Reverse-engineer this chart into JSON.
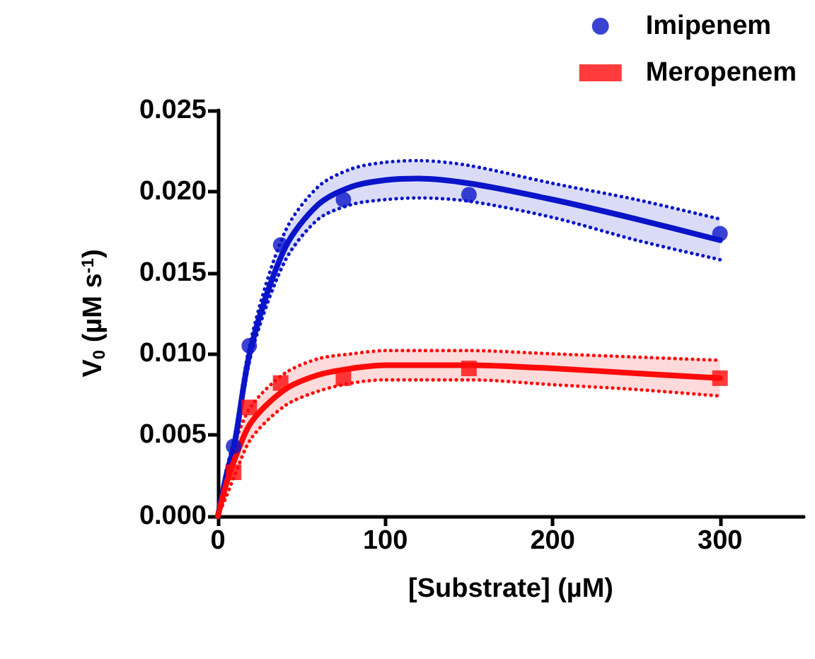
{
  "chart_data": {
    "type": "scatter",
    "xlabel": "[Substrate] (µM)",
    "ylabel": "V$_{0}$ (µM s$^{-1}$)",
    "xlim": [
      0,
      350
    ],
    "xticks": [
      0,
      100,
      200,
      300
    ],
    "ylim": [
      0,
      0.025
    ],
    "yticks": [
      {
        "value": 0,
        "label": "0.000"
      },
      {
        "value": 0.005,
        "label": "0.005"
      },
      {
        "value": 0.01,
        "label": "0.010"
      },
      {
        "value": 0.015,
        "label": "0.015"
      },
      {
        "value": 0.02,
        "label": "0.020"
      },
      {
        "value": 0.025,
        "label": "0.025"
      }
    ],
    "grid": false,
    "legend": "top right",
    "series": [
      {
        "name": "Imipenem",
        "color": "#0a14c8",
        "marker": "circle",
        "x": [
          9.375,
          18.75,
          37.5,
          75,
          150,
          300
        ],
        "values": [
          0.0043,
          0.0105,
          0.0167,
          0.0195,
          0.0198,
          0.0174
        ]
      },
      {
        "name": "Meropenem",
        "color": "#ff0a0a",
        "marker": "square",
        "x": [
          9.375,
          18.75,
          37.5,
          75,
          150,
          300
        ],
        "values": [
          0.0027,
          0.0067,
          0.0082,
          0.0085,
          0.0091,
          0.0085
        ]
      },
      {
        "type": "line",
        "color": "#0a14c8",
        "marker": "none",
        "line_style": "solid",
        "x": [
          0,
          5,
          10,
          20,
          40,
          60,
          80,
          100,
          120,
          150,
          200,
          250,
          300
        ],
        "values": [
          0,
          0.0025,
          0.0045,
          0.0105,
          0.0165,
          0.0192,
          0.0203,
          0.0207,
          0.0208,
          0.0205,
          0.0195,
          0.0183,
          0.017
        ],
        "lower": [
          0,
          0.0022,
          0.0041,
          0.01,
          0.0157,
          0.0183,
          0.0192,
          0.0195,
          0.0196,
          0.0194,
          0.0184,
          0.017,
          0.0158
        ],
        "upper": [
          0,
          0.0028,
          0.0049,
          0.011,
          0.0175,
          0.0203,
          0.0214,
          0.0218,
          0.0219,
          0.0216,
          0.0205,
          0.0195,
          0.0183
        ]
      },
      {
        "type": "line",
        "color": "#0a14c8",
        "marker": "none",
        "line_style": "dotted",
        "x": [
          0,
          5,
          10,
          20,
          40,
          60,
          80,
          100,
          120,
          150,
          200,
          250,
          300
        ],
        "values": [
          0,
          0.0022,
          0.0041,
          0.01,
          0.0157,
          0.0183,
          0.0192,
          0.0195,
          0.0196,
          0.0194,
          0.0184,
          0.017,
          0.0158
        ]
      },
      {
        "type": "line",
        "color": "#0a14c8",
        "marker": "none",
        "line_style": "dotted",
        "x": [
          0,
          5,
          10,
          20,
          40,
          60,
          80,
          100,
          120,
          150,
          200,
          250,
          300
        ],
        "values": [
          0,
          0.0028,
          0.0049,
          0.011,
          0.0175,
          0.0203,
          0.0214,
          0.0218,
          0.0219,
          0.0216,
          0.0205,
          0.0195,
          0.0183
        ]
      },
      {
        "type": "line",
        "color": "#ff0a0a",
        "marker": "none",
        "line_style": "solid",
        "x": [
          0,
          5,
          10,
          20,
          40,
          60,
          80,
          100,
          120,
          150,
          200,
          250,
          300
        ],
        "values": [
          0,
          0.002,
          0.0035,
          0.0058,
          0.0078,
          0.0087,
          0.0091,
          0.0093,
          0.0093,
          0.0093,
          0.0091,
          0.0088,
          0.0085
        ],
        "lower": [
          0,
          0.0012,
          0.0025,
          0.0048,
          0.0068,
          0.0077,
          0.0082,
          0.0084,
          0.0084,
          0.0084,
          0.0081,
          0.0078,
          0.0074
        ],
        "upper": [
          0,
          0.0028,
          0.0045,
          0.0068,
          0.0088,
          0.0097,
          0.01,
          0.0102,
          0.0102,
          0.0102,
          0.01,
          0.0098,
          0.0096
        ]
      },
      {
        "type": "line",
        "color": "#ff0a0a",
        "marker": "none",
        "line_style": "dotted",
        "x": [
          0,
          5,
          10,
          20,
          40,
          60,
          80,
          100,
          120,
          150,
          200,
          250,
          300
        ],
        "values": [
          0,
          0.0012,
          0.0025,
          0.0048,
          0.0068,
          0.0077,
          0.0082,
          0.0084,
          0.0084,
          0.0084,
          0.0081,
          0.0078,
          0.0074
        ]
      },
      {
        "type": "line",
        "color": "#ff0a0a",
        "marker": "none",
        "line_style": "dotted",
        "x": [
          0,
          5,
          10,
          20,
          40,
          60,
          80,
          100,
          120,
          150,
          200,
          250,
          300
        ],
        "values": [
          0,
          0.0028,
          0.0045,
          0.0068,
          0.0088,
          0.0097,
          0.01,
          0.0102,
          0.0102,
          0.0102,
          0.01,
          0.0098,
          0.0096
        ]
      }
    ]
  }
}
